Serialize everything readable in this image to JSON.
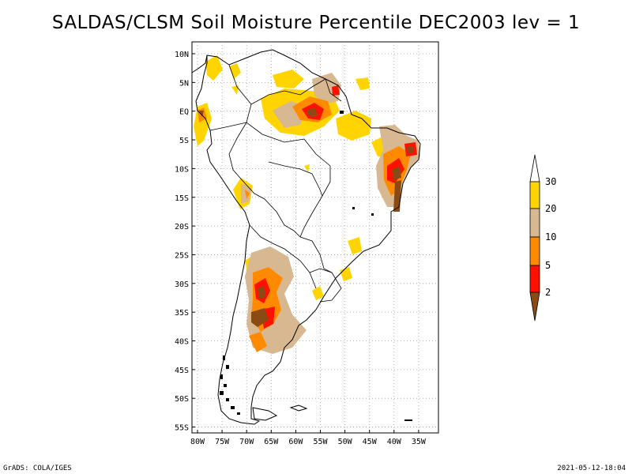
{
  "title": "SALDAS/CLSM Soil Moisture Percentile DEC2003 lev = 1",
  "map": {
    "lat_labels": [
      "10N",
      "5N",
      "EQ",
      "5S",
      "10S",
      "15S",
      "20S",
      "25S",
      "30S",
      "35S",
      "40S",
      "45S",
      "50S",
      "55S"
    ],
    "lon_labels": [
      "80W",
      "75W",
      "70W",
      "65W",
      "60W",
      "55W",
      "50W",
      "45W",
      "40W",
      "35W"
    ],
    "region": "South America",
    "gridlines": "dotted"
  },
  "legend": {
    "labels": [
      "30",
      "20",
      "10",
      "5",
      "2"
    ],
    "colors": {
      "above_30": "#ffffff",
      "20_30": "#ffd400",
      "10_20": "#d8b890",
      "5_10": "#ff8a00",
      "2_5": "#ff1000",
      "below_2": "#8b4a13"
    }
  },
  "footer": {
    "left": "GrADS: COLA/IGES",
    "right": "2021-05-12-18:04"
  }
}
